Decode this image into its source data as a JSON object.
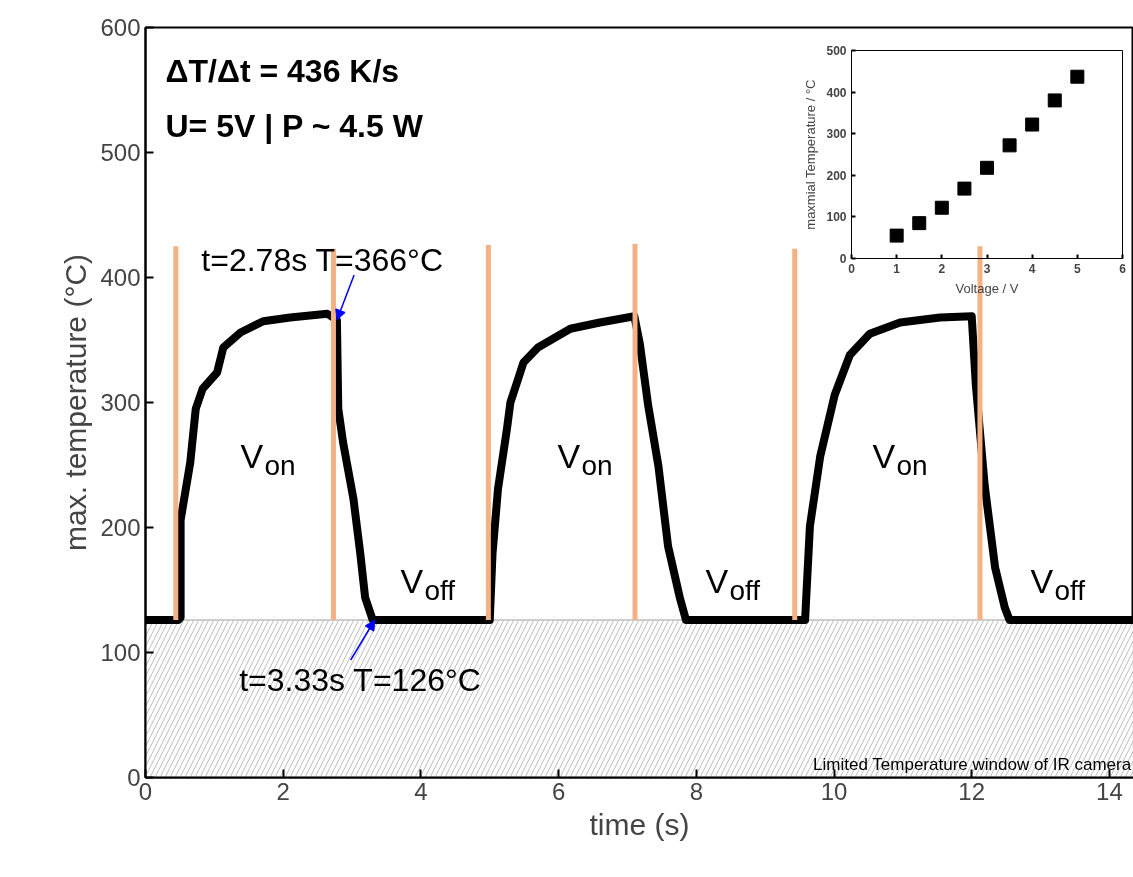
{
  "chart_data": [
    {
      "type": "line",
      "xlabel": "time (s)",
      "ylabel": "max. temperature (°C)",
      "xlim": [
        0,
        14.35
      ],
      "ylim": [
        0,
        600
      ],
      "xticks": [
        0,
        2,
        4,
        6,
        8,
        10,
        12,
        14
      ],
      "yticks": [
        0,
        100,
        200,
        300,
        400,
        500,
        600
      ],
      "grid": false,
      "line_style": "solid",
      "series": [
        {
          "color": "#000000",
          "x": [
            0,
            0.48,
            0.51,
            0.51,
            0.65,
            0.73,
            0.83,
            1.04,
            1.13,
            1.38,
            1.71,
            2.1,
            2.64,
            2.78,
            2.8,
            2.87,
            3.02,
            3.12,
            3.19,
            3.3,
            5.0,
            5.04,
            5.12,
            5.25,
            5.3,
            5.49,
            5.7,
            6.17,
            6.6,
            7.1,
            7.18,
            7.3,
            7.45,
            7.59,
            7.76,
            7.85,
            9.58,
            9.65,
            9.8,
            10.01,
            10.23,
            10.52,
            10.96,
            11.54,
            12.0,
            12.06,
            12.19,
            12.34,
            12.48,
            12.55,
            14.35
          ],
          "values": [
            126,
            126,
            128,
            206,
            252,
            295,
            311,
            324,
            344,
            356,
            365,
            368,
            371,
            366,
            295,
            268,
            223,
            179,
            144,
            126,
            126,
            179,
            231,
            279,
            300,
            332,
            344,
            359,
            364,
            369,
            347,
            298,
            249,
            185,
            144,
            126,
            126,
            201,
            257,
            306,
            338,
            355,
            364,
            368,
            369,
            314,
            233,
            168,
            136,
            126,
            126
          ]
        },
        {
          "type": "line",
          "color": "#f4b183",
          "x": [
            0.44,
            0.44
          ],
          "values": [
            126,
            425
          ]
        },
        {
          "type": "line",
          "color": "#f4b183",
          "x": [
            2.73,
            2.73
          ],
          "values": [
            126,
            423
          ]
        },
        {
          "type": "line",
          "color": "#f4b183",
          "x": [
            4.98,
            4.98
          ],
          "values": [
            126,
            426
          ]
        },
        {
          "type": "line",
          "color": "#f4b183",
          "x": [
            7.11,
            7.11
          ],
          "values": [
            126,
            427
          ]
        },
        {
          "type": "line",
          "color": "#f4b183",
          "x": [
            9.43,
            9.43
          ],
          "values": [
            126,
            423
          ]
        },
        {
          "type": "line",
          "color": "#f4b183",
          "x": [
            12.12,
            12.12
          ],
          "values": [
            126,
            425
          ]
        }
      ],
      "bands": [
        {
          "axis": "y",
          "from": 0,
          "to": 126,
          "label": "Limited Temperature window of IR camera",
          "color": "#bfbfbf"
        }
      ],
      "annotations": [
        "ΔT/Δt = 436 K/s",
        "U= 5V | P ~ 4.5 W",
        {
          "text": "t=2.78s  T=366°C",
          "x": 2.78,
          "y": 366
        },
        {
          "text": "t=3.33s  T=126°C",
          "x": 3.33,
          "y": 126
        },
        "V$_{on}$",
        "V$_{on}$",
        "V$_{on}$",
        "V$_{off}$",
        "V$_{off}$",
        "V$_{off}$"
      ]
    },
    {
      "type": "scatter",
      "xlabel": "Voltage / V",
      "ylabel": "maxmial Temperature / °C",
      "xlim": [
        0,
        6
      ],
      "ylim": [
        0,
        500
      ],
      "xticks": [
        0,
        1,
        2,
        3,
        4,
        5,
        6
      ],
      "yticks": [
        0,
        100,
        200,
        300,
        400,
        500
      ],
      "grid": false,
      "marker": "square",
      "x": [
        1,
        1.5,
        2,
        2.5,
        3,
        3.5,
        4,
        4.5,
        5
      ],
      "values": [
        55,
        85,
        122,
        168,
        218,
        272,
        322,
        380,
        437
      ],
      "color": "#000000"
    }
  ]
}
